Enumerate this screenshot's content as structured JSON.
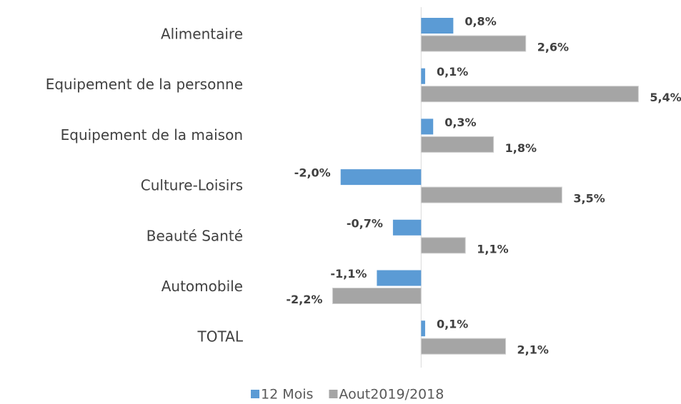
{
  "chart_data": {
    "type": "hbar",
    "categories": [
      "Alimentaire",
      "Equipement de la personne",
      "Equipement de la maison",
      "Culture-Loisirs",
      "Beauté Santé",
      "Automobile",
      "TOTAL"
    ],
    "series": [
      {
        "name": "12 Mois",
        "color": "#5b9bd5",
        "values": [
          0.8,
          0.1,
          0.3,
          -2.0,
          -0.7,
          -1.1,
          0.1
        ],
        "value_labels": [
          "0,8%",
          "0,1%",
          "0,3%",
          "-2,0%",
          "-0,7%",
          "-1,1%",
          "0,1%"
        ]
      },
      {
        "name": "Aout2019/2018",
        "color": "#a5a5a5",
        "values": [
          2.6,
          5.4,
          1.8,
          3.5,
          1.1,
          -2.2,
          2.1
        ],
        "value_labels": [
          "2,6%",
          "5,4%",
          "1,8%",
          "3,5%",
          "1,1%",
          "-2,2%",
          "2,1%"
        ]
      }
    ],
    "xlim": [
      -4.25,
      5.5
    ],
    "legend": "bottom"
  }
}
